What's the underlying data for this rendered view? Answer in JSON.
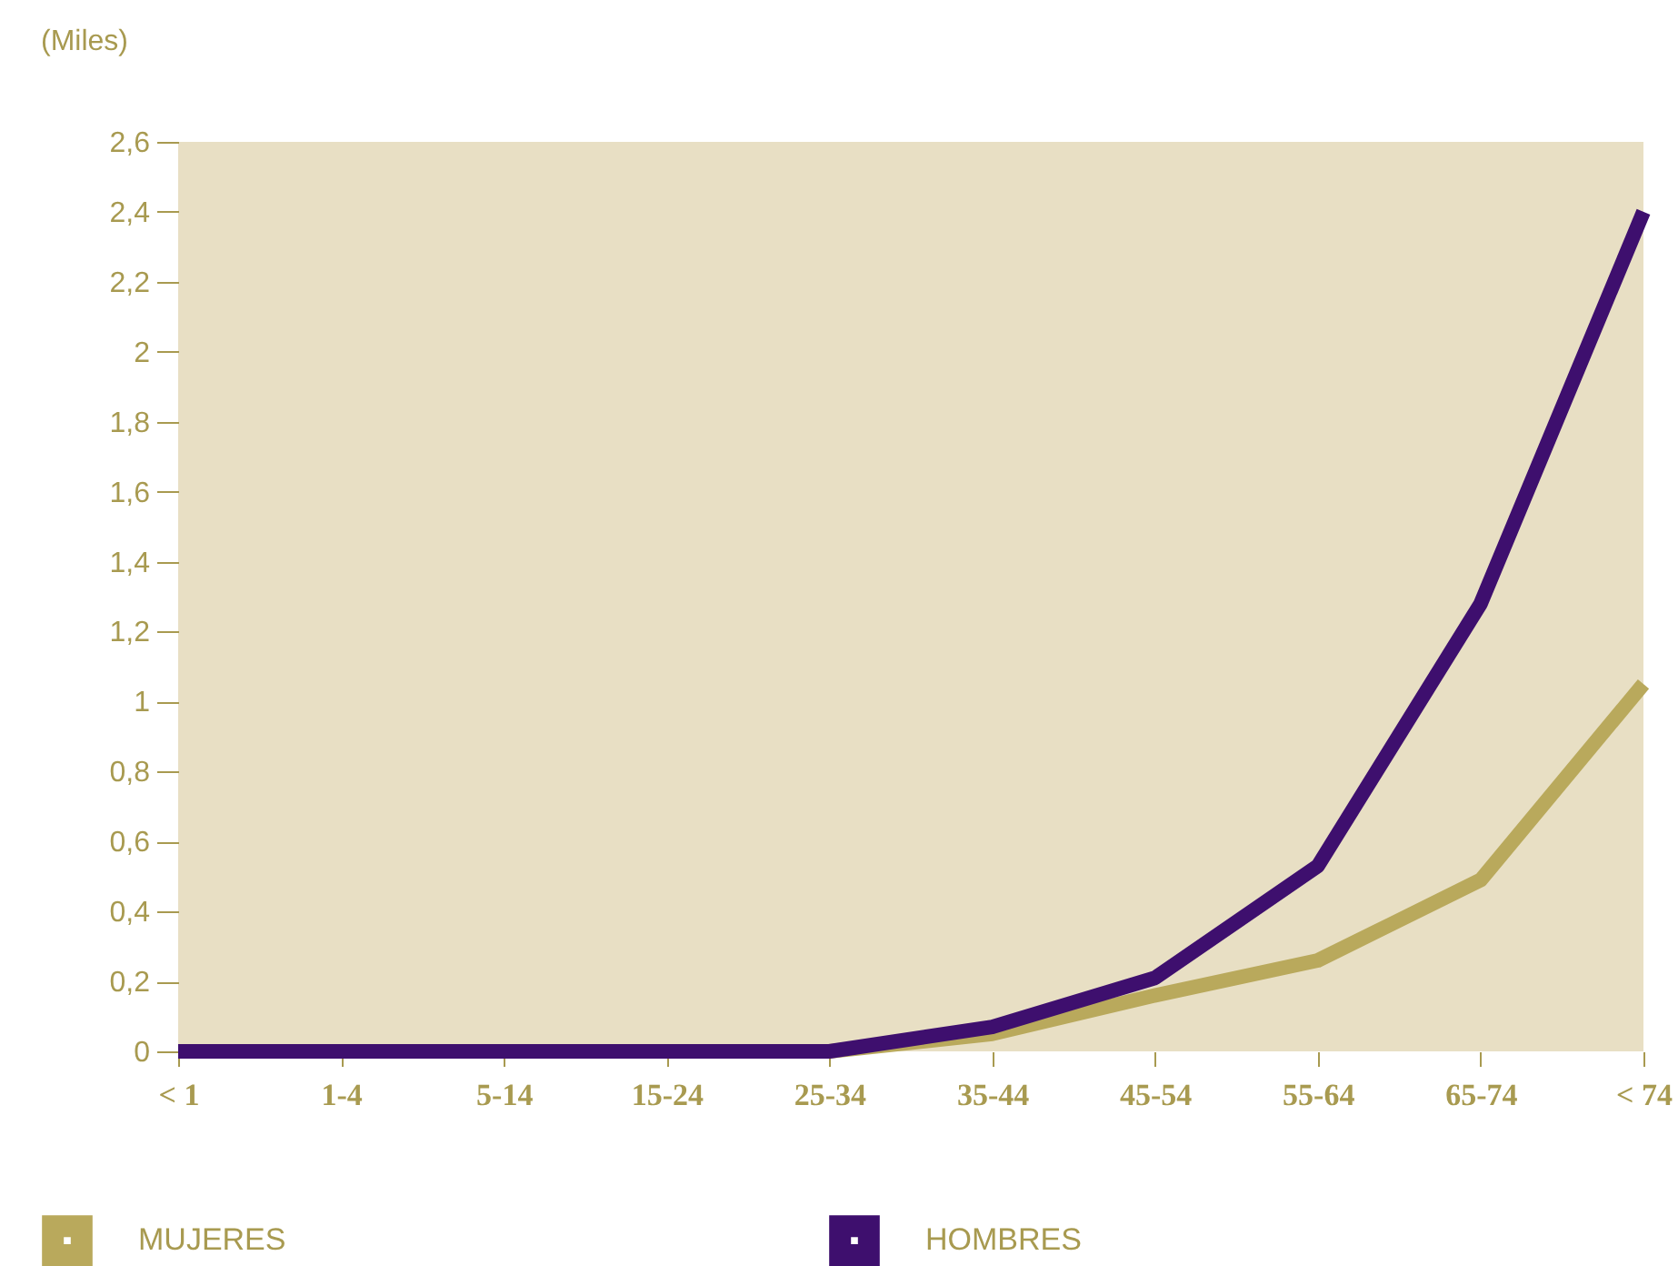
{
  "chart_data": {
    "type": "line",
    "ylabel": "(Miles)",
    "categories": [
      "< 1",
      "1-4",
      "5-14",
      "15-24",
      "25-34",
      "35-44",
      "45-54",
      "55-64",
      "65-74",
      "< 74"
    ],
    "series": [
      {
        "name": "MUJERES",
        "color": "#b9a95c",
        "values": [
          0,
          0,
          0,
          0,
          0,
          0.05,
          0.16,
          0.26,
          0.49,
          1.05
        ]
      },
      {
        "name": "HOMBRES",
        "color": "#3e0f6e",
        "values": [
          0,
          0,
          0,
          0,
          0,
          0.07,
          0.21,
          0.53,
          1.28,
          2.4
        ]
      }
    ],
    "ylim": [
      0,
      2.6
    ],
    "yticks": [
      0,
      {
        "value": 0.2,
        "label": "0,2"
      },
      {
        "value": 0.4,
        "label": "0,4"
      },
      {
        "value": 0.6,
        "label": "0,6"
      },
      {
        "value": 0.8,
        "label": "0,8"
      },
      1,
      {
        "value": 1.2,
        "label": "1,2"
      },
      {
        "value": 1.4,
        "label": "1,4"
      },
      {
        "value": 1.6,
        "label": "1,6"
      },
      {
        "value": 1.8,
        "label": "1,8"
      },
      2,
      {
        "value": 2.2,
        "label": "2,2"
      },
      {
        "value": 2.4,
        "label": "2,4"
      },
      {
        "value": 2.6,
        "label": "2,6"
      }
    ],
    "grid": false,
    "legend": "bottom left",
    "marker": "none",
    "line_style": "solid"
  }
}
